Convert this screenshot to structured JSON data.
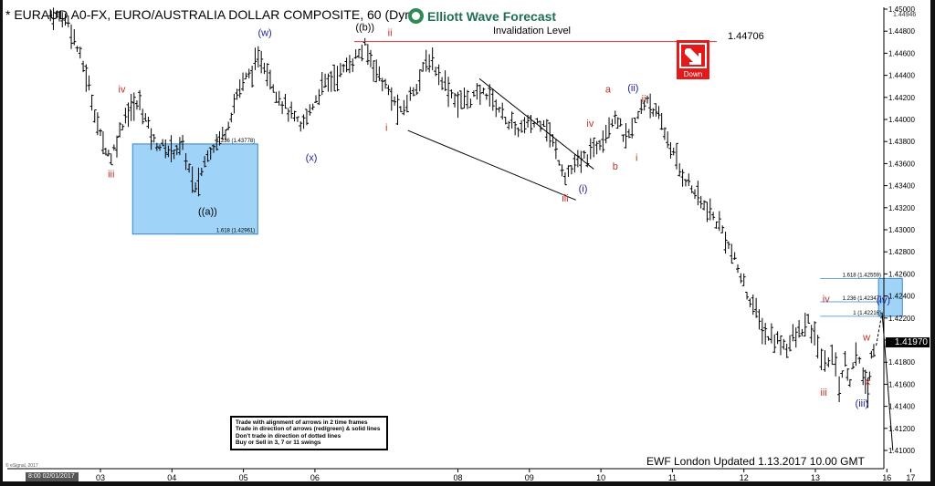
{
  "header": {
    "title": "* EURAUD A0-FX, EURO/AUSTRALIA DOLLAR COMPOSITE, 60 (Dynamic)",
    "brand": "Elliott Wave Forecast",
    "invalidation_label": "Invalidation Level",
    "invalidation_value": "1.44706",
    "down_label": "Down"
  },
  "rules_box": [
    "Trade with alignment of arrows in 2 time frames",
    "Trade in direction of arrows (red/green) & solid lines",
    "Don't trade in direction of dotted lines",
    "Buy or Sell in 3, 7 or 11 swings"
  ],
  "footer": {
    "updated": "EWF London Updated 1.13.2017 10.00 GMT",
    "copyright": "© eSignal, 2017",
    "date_cursor": "8:00 02/01/2017",
    "last_price": "1.41970",
    "top_price": "1.44946"
  },
  "colors": {
    "invalidation_line": "#d23a3a",
    "target_zone": "#9fd3f7",
    "wave_red": "#c0302a",
    "wave_blue": "#23239b",
    "down_button": "#e31a1a"
  },
  "chart_data": {
    "type": "bar",
    "symbol": "EURAUD",
    "timeframe": "60",
    "ylim": [
      1.41,
      1.45
    ],
    "y_ticks": [
      "1.45000",
      "1.44800",
      "1.44600",
      "1.44400",
      "1.44200",
      "1.44000",
      "1.43800",
      "1.43600",
      "1.43400",
      "1.43200",
      "1.43000",
      "1.42800",
      "1.42600",
      "1.42400",
      "1.42200",
      "1.42000",
      "1.41800",
      "1.41600",
      "1.41400",
      "1.41200",
      "1.41000"
    ],
    "x_ticks": [
      "03",
      "04",
      "05",
      "06",
      "08",
      "09",
      "10",
      "11",
      "12",
      "13",
      "16",
      "17"
    ],
    "x_tick_days": [
      3,
      4,
      5,
      6,
      8,
      9,
      10,
      11,
      12,
      13,
      16,
      17
    ],
    "price_path": [
      {
        "day": 2.3,
        "price": 1.4495
      },
      {
        "day": 2.55,
        "price": 1.449
      },
      {
        "day": 2.8,
        "price": 1.444
      },
      {
        "day": 3.0,
        "price": 1.4385
      },
      {
        "day": 3.15,
        "price": 1.4365
      },
      {
        "day": 3.35,
        "price": 1.4405
      },
      {
        "day": 3.55,
        "price": 1.4415
      },
      {
        "day": 3.75,
        "price": 1.438
      },
      {
        "day": 3.95,
        "price": 1.4372
      },
      {
        "day": 4.15,
        "price": 1.4375
      },
      {
        "day": 4.33,
        "price": 1.4335
      },
      {
        "day": 4.5,
        "price": 1.437
      },
      {
        "day": 4.75,
        "price": 1.439
      },
      {
        "day": 4.95,
        "price": 1.443
      },
      {
        "day": 5.25,
        "price": 1.4455
      },
      {
        "day": 5.5,
        "price": 1.442
      },
      {
        "day": 5.8,
        "price": 1.4392
      },
      {
        "day": 6.1,
        "price": 1.443
      },
      {
        "day": 6.4,
        "price": 1.4445
      },
      {
        "day": 6.7,
        "price": 1.4465
      },
      {
        "day": 6.9,
        "price": 1.444
      },
      {
        "day": 7.2,
        "price": 1.4405
      },
      {
        "day": 7.6,
        "price": 1.4455
      },
      {
        "day": 8.0,
        "price": 1.4415
      },
      {
        "day": 8.4,
        "price": 1.4425
      },
      {
        "day": 8.8,
        "price": 1.439
      },
      {
        "day": 9.2,
        "price": 1.44
      },
      {
        "day": 9.5,
        "price": 1.435
      },
      {
        "day": 9.9,
        "price": 1.4372
      },
      {
        "day": 10.2,
        "price": 1.4405
      },
      {
        "day": 10.35,
        "price": 1.438
      },
      {
        "day": 10.65,
        "price": 1.442
      },
      {
        "day": 10.85,
        "price": 1.4395
      },
      {
        "day": 11.1,
        "price": 1.4355
      },
      {
        "day": 11.4,
        "price": 1.4325
      },
      {
        "day": 11.7,
        "price": 1.43
      },
      {
        "day": 12.0,
        "price": 1.425
      },
      {
        "day": 12.3,
        "price": 1.4205
      },
      {
        "day": 12.6,
        "price": 1.4195
      },
      {
        "day": 12.9,
        "price": 1.4215
      },
      {
        "day": 13.1,
        "price": 1.4195
      },
      {
        "day": 13.4,
        "price": 1.4175
      },
      {
        "day": 13.7,
        "price": 1.419
      },
      {
        "day": 14.0,
        "price": 1.416
      },
      {
        "day": 14.25,
        "price": 1.418
      },
      {
        "day": 14.45,
        "price": 1.4165
      },
      {
        "day": 14.7,
        "price": 1.4185
      },
      {
        "day": 15.0,
        "price": 1.417
      },
      {
        "day": 15.2,
        "price": 1.415
      },
      {
        "day": 15.35,
        "price": 1.419
      },
      {
        "day": 15.55,
        "price": 1.4195
      }
    ],
    "projection": [
      {
        "day": 15.55,
        "price": 1.4195
      },
      {
        "day": 15.8,
        "price": 1.4225
      },
      {
        "day": 16.25,
        "price": 1.41
      }
    ],
    "invalidation_level": 1.44706,
    "zones": [
      {
        "name": "buy-zone",
        "day_start": 3.45,
        "day_end": 5.2,
        "price_top": 1.43778,
        "price_bottom": 1.42961,
        "labels": [
          {
            "text": "1.236 (1.43778)",
            "price": 1.43778
          },
          {
            "text": "1.618 (1.42961)",
            "price": 1.42961
          }
        ]
      },
      {
        "name": "target-zone",
        "day_start": 15.65,
        "day_end": 16.65,
        "price_top": 1.42559,
        "price_bottom": 1.42216,
        "labels": [
          {
            "text": "1.618 (1.42559)",
            "price": 1.42559
          },
          {
            "text": "1.236 (1.42347)",
            "price": 1.42347
          },
          {
            "text": "1 (1.42216)",
            "price": 1.42216
          }
        ]
      }
    ],
    "wave_labels": [
      {
        "text": "iv",
        "day": 3.3,
        "price": 1.44245,
        "color": "red"
      },
      {
        "text": "iii",
        "day": 3.15,
        "price": 1.43475,
        "color": "red"
      },
      {
        "text": "((a))",
        "day": 4.5,
        "price": 1.43135,
        "color": "black"
      },
      {
        "text": "(w)",
        "day": 5.3,
        "price": 1.44755,
        "color": "blue"
      },
      {
        "text": "(x)",
        "day": 5.95,
        "price": 1.43625,
        "color": "blue"
      },
      {
        "text": "((b))",
        "day": 6.7,
        "price": 1.44805,
        "color": "black"
      },
      {
        "text": "ii",
        "day": 7.05,
        "price": 1.44755,
        "color": "red"
      },
      {
        "text": "i",
        "day": 7.0,
        "price": 1.43895,
        "color": "red"
      },
      {
        "text": "a",
        "day": 10.1,
        "price": 1.44245,
        "color": "red"
      },
      {
        "text": "(ii)",
        "day": 10.45,
        "price": 1.44255,
        "color": "blue"
      },
      {
        "text": "ii",
        "day": 10.6,
        "price": 1.44155,
        "color": "red"
      },
      {
        "text": "iv",
        "day": 9.85,
        "price": 1.43935,
        "color": "red"
      },
      {
        "text": "b",
        "day": 10.2,
        "price": 1.43545,
        "color": "red"
      },
      {
        "text": "i",
        "day": 10.5,
        "price": 1.43625,
        "color": "red"
      },
      {
        "text": "(i)",
        "day": 9.75,
        "price": 1.43345,
        "color": "blue"
      },
      {
        "text": "iii",
        "day": 9.5,
        "price": 1.43255,
        "color": "red"
      },
      {
        "text": "iv",
        "day": 13.45,
        "price": 1.42345,
        "color": "red"
      },
      {
        "text": "iii",
        "day": 13.35,
        "price": 1.41495,
        "color": "red"
      },
      {
        "text": "w",
        "day": 15.15,
        "price": 1.41995,
        "color": "red"
      },
      {
        "text": "x",
        "day": 15.2,
        "price": 1.41595,
        "color": "red"
      },
      {
        "text": "(iii)",
        "day": 14.95,
        "price": 1.41395,
        "color": "blue"
      },
      {
        "text": "(iv)",
        "day": 15.85,
        "price": 1.42335,
        "color": "blue"
      }
    ],
    "trend_lines": [
      {
        "d1": 7.3,
        "p1": 1.439,
        "d2": 9.65,
        "p2": 1.4327
      },
      {
        "d1": 8.3,
        "p1": 1.4437,
        "d2": 9.9,
        "p2": 1.4355
      }
    ]
  }
}
